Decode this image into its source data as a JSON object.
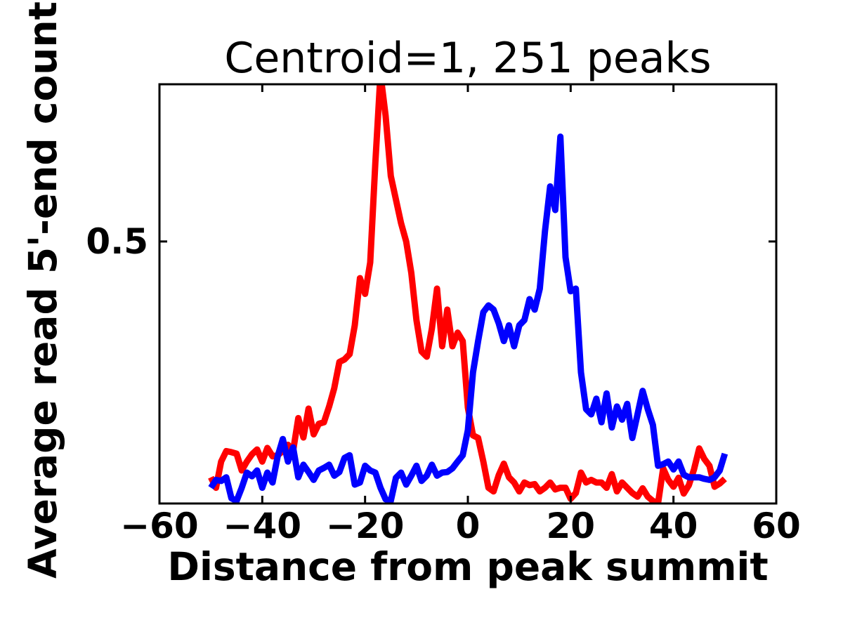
{
  "figure": {
    "title": "Centroid=1, 251 peaks",
    "xlabel": "Distance from peak summit",
    "ylabel": "Average read 5'-end count"
  },
  "axes": {
    "x_tick_labels": [
      "−60",
      "−40",
      "−20",
      "0",
      "20",
      "40",
      "60"
    ],
    "x_tick_values": [
      -60,
      -40,
      -20,
      0,
      20,
      40,
      60
    ],
    "y_tick_labels": [
      "0.5"
    ],
    "y_tick_values": [
      0.5
    ],
    "xlim": [
      -60,
      60
    ],
    "ylim": [
      0,
      0.8
    ]
  },
  "colors": {
    "series_red": "#ff0000",
    "series_blue": "#0000ff",
    "axis": "#000000",
    "background": "#ffffff"
  },
  "chart_data": {
    "type": "line",
    "title": "Centroid=1, 251 peaks",
    "xlabel": "Distance from peak summit",
    "ylabel": "Average read 5'-end count",
    "xlim": [
      -60,
      60
    ],
    "ylim": [
      0,
      0.8
    ],
    "x_ticks": [
      -60,
      -40,
      -20,
      0,
      20,
      40,
      60
    ],
    "y_ticks": [
      0.5
    ],
    "grid": false,
    "legend_position": "none",
    "note": "Red series peak near x=-17 is clipped by the top of the axes; blue drawn over red.",
    "x": [
      -50,
      -49,
      -48,
      -47,
      -46,
      -45,
      -44,
      -43,
      -42,
      -41,
      -40,
      -39,
      -38,
      -37,
      -36,
      -35,
      -34,
      -33,
      -32,
      -31,
      -30,
      -29,
      -28,
      -27,
      -26,
      -25,
      -24,
      -23,
      -22,
      -21,
      -20,
      -19,
      -18,
      -17,
      -16,
      -15,
      -14,
      -13,
      -12,
      -11,
      -10,
      -9,
      -8,
      -7,
      -6,
      -5,
      -4,
      -3,
      -2,
      -1,
      0,
      1,
      2,
      3,
      4,
      5,
      6,
      7,
      8,
      9,
      10,
      11,
      12,
      13,
      14,
      15,
      16,
      17,
      18,
      19,
      20,
      21,
      22,
      23,
      24,
      25,
      26,
      27,
      28,
      29,
      30,
      31,
      32,
      33,
      34,
      35,
      36,
      37,
      38,
      39,
      40,
      41,
      42,
      43,
      44,
      45,
      46,
      47,
      48,
      49,
      50
    ],
    "series": [
      {
        "name": "red",
        "color": "#ff0000",
        "values": [
          0.05,
          0.03,
          0.08,
          0.1,
          0.098,
          0.095,
          0.063,
          0.08,
          0.094,
          0.103,
          0.08,
          0.106,
          0.09,
          0.092,
          0.1,
          0.112,
          0.1,
          0.163,
          0.126,
          0.181,
          0.132,
          0.152,
          0.155,
          0.185,
          0.22,
          0.27,
          0.275,
          0.285,
          0.34,
          0.43,
          0.4,
          0.46,
          0.65,
          0.82,
          0.74,
          0.625,
          0.58,
          0.535,
          0.5,
          0.44,
          0.35,
          0.29,
          0.28,
          0.334,
          0.41,
          0.3,
          0.37,
          0.3,
          0.326,
          0.31,
          0.183,
          0.13,
          0.125,
          0.08,
          0.03,
          0.023,
          0.054,
          0.076,
          0.05,
          0.04,
          0.023,
          0.04,
          0.035,
          0.037,
          0.023,
          0.03,
          0.04,
          0.027,
          0.03,
          0.03,
          0.009,
          0.02,
          0.059,
          0.04,
          0.045,
          0.04,
          0.04,
          0.03,
          0.056,
          0.023,
          0.04,
          0.03,
          0.02,
          0.013,
          0.029,
          0.013,
          0.005,
          0.0,
          0.067,
          0.045,
          0.032,
          0.049,
          0.019,
          0.035,
          0.065,
          0.105,
          0.085,
          0.072,
          0.032,
          0.038,
          0.047
        ]
      },
      {
        "name": "blue",
        "color": "#0000ff",
        "values": [
          0.03,
          0.045,
          0.043,
          0.05,
          0.01,
          0.005,
          0.03,
          0.059,
          0.052,
          0.063,
          0.03,
          0.059,
          0.04,
          0.09,
          0.123,
          0.08,
          0.107,
          0.05,
          0.074,
          0.06,
          0.045,
          0.063,
          0.068,
          0.074,
          0.053,
          0.06,
          0.087,
          0.092,
          0.036,
          0.04,
          0.072,
          0.063,
          0.059,
          0.03,
          0.008,
          0.005,
          0.049,
          0.059,
          0.036,
          0.053,
          0.072,
          0.043,
          0.053,
          0.074,
          0.053,
          0.059,
          0.06,
          0.067,
          0.08,
          0.092,
          0.14,
          0.25,
          0.31,
          0.365,
          0.378,
          0.37,
          0.344,
          0.31,
          0.34,
          0.3,
          0.34,
          0.35,
          0.39,
          0.37,
          0.41,
          0.52,
          0.605,
          0.56,
          0.7,
          0.47,
          0.405,
          0.41,
          0.25,
          0.18,
          0.17,
          0.2,
          0.155,
          0.21,
          0.145,
          0.185,
          0.16,
          0.19,
          0.125,
          0.17,
          0.215,
          0.18,
          0.15,
          0.072,
          0.075,
          0.08,
          0.065,
          0.08,
          0.055,
          0.05,
          0.05,
          0.05,
          0.047,
          0.045,
          0.05,
          0.063,
          0.095
        ]
      }
    ]
  }
}
